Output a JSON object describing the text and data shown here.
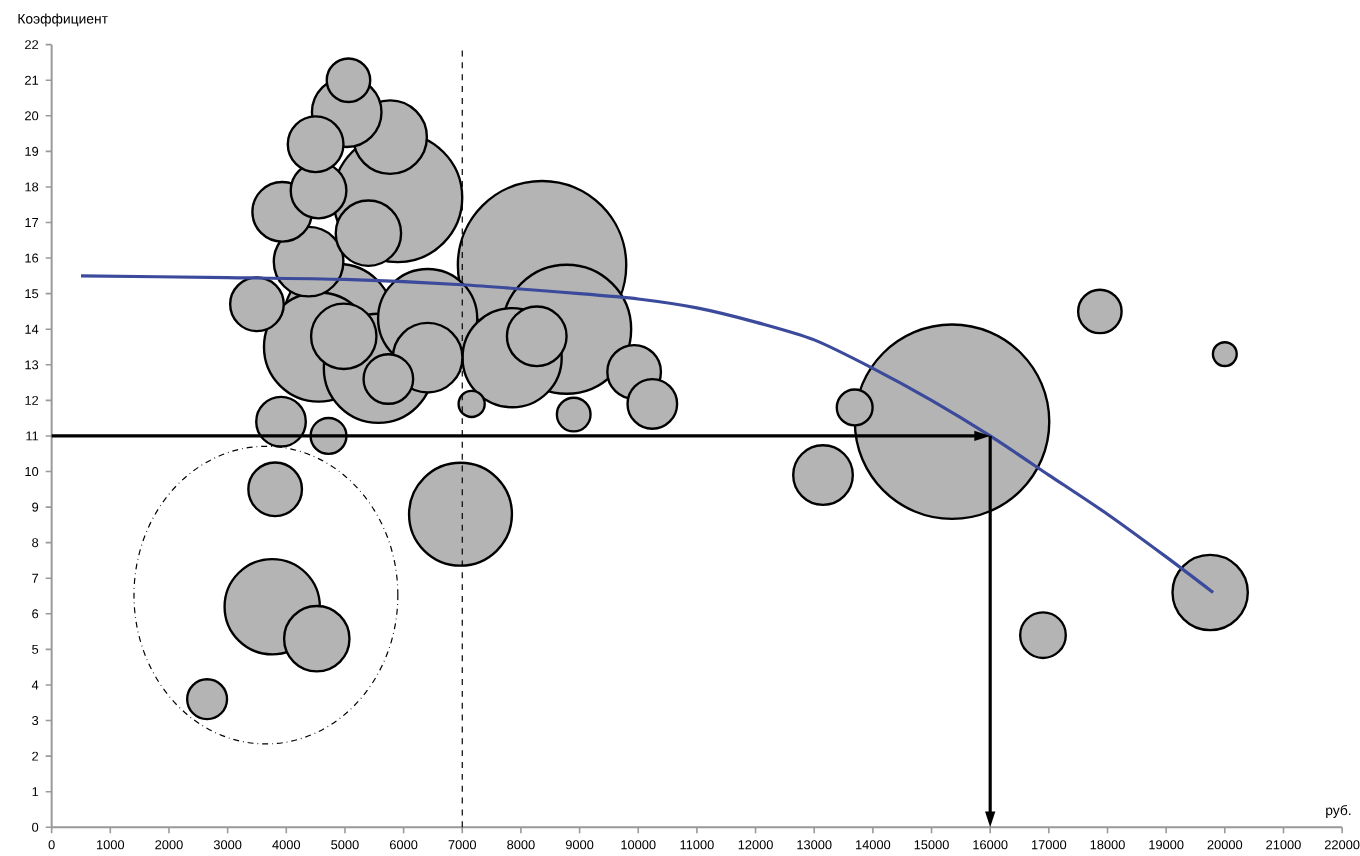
{
  "chart_data": {
    "type": "bubble",
    "xlabel": "руб.",
    "ylabel": "Коэффициент",
    "xlim": [
      0,
      22000
    ],
    "xticks": [
      0,
      1000,
      2000,
      3000,
      4000,
      5000,
      6000,
      7000,
      8000,
      9000,
      10000,
      11000,
      12000,
      13000,
      14000,
      15000,
      16000,
      17000,
      18000,
      19000,
      20000,
      21000,
      22000
    ],
    "ylim": [
      0,
      22
    ],
    "yticks": [
      0,
      1,
      2,
      3,
      4,
      5,
      6,
      7,
      8,
      9,
      10,
      11,
      12,
      13,
      14,
      15,
      16,
      17,
      18,
      19,
      20,
      21,
      22
    ],
    "grid": false,
    "ref_lines": [
      {
        "axis": "x",
        "value": 7000,
        "line_style": "dashed",
        "color": "#000000"
      },
      {
        "axis": "y",
        "value": 11,
        "line_style": "solid",
        "color": "#000000"
      },
      {
        "axis": "x",
        "value": 16000,
        "line_style": "solid",
        "color": "#000000"
      }
    ],
    "series": [
      {
        "color": "#b4b4b4",
        "x": [
          15350,
          8360,
          8780,
          5900,
          4890,
          4550,
          5570,
          6970,
          6410,
          7850,
          3760,
          19750,
          5770,
          5030,
          4380,
          6410,
          4520,
          5400,
          4980,
          3930,
          8270,
          13150,
          4550,
          4500,
          3810,
          3500,
          9930,
          3910,
          5740,
          10240,
          16900,
          5060,
          17870,
          2650,
          4720,
          13690,
          8900,
          7160,
          20000
        ],
        "values": [
          11.4,
          15.8,
          14.0,
          17.7,
          14.3,
          13.5,
          12.9,
          8.8,
          14.3,
          13.2,
          6.2,
          6.6,
          19.4,
          20.1,
          15.9,
          13.2,
          5.3,
          16.7,
          13.8,
          17.3,
          13.8,
          9.9,
          17.9,
          19.2,
          9.5,
          14.7,
          12.8,
          11.4,
          12.6,
          11.9,
          5.4,
          21.0,
          14.5,
          3.6,
          11.0,
          11.8,
          11.6,
          11.9,
          13.3
        ],
        "sizes": [
          1,
          0.75,
          0.44,
          0.44,
          0.315,
          0.315,
          0.315,
          0.28,
          0.26,
          0.26,
          0.24,
          0.15,
          0.143,
          0.128,
          0.128,
          0.128,
          0.113,
          0.113,
          0.113,
          0.094,
          0.094,
          0.094,
          0.082,
          0.082,
          0.076,
          0.076,
          0.076,
          0.065,
          0.065,
          0.065,
          0.055,
          0.05,
          0.05,
          0.042,
          0.034,
          0.034,
          0.03,
          0.018,
          0.015
        ]
      },
      {
        "type": "line",
        "color": "#3c4a9c",
        "x": [
          500,
          3000,
          5000,
          7000,
          9000,
          10000,
          11000,
          12000,
          13000,
          14000,
          15000,
          16000,
          17000,
          18000,
          19000,
          19800
        ],
        "values": [
          15.5,
          15.45,
          15.4,
          15.25,
          15.0,
          14.85,
          14.6,
          14.2,
          13.7,
          12.9,
          12.0,
          11.0,
          9.9,
          8.8,
          7.6,
          6.6
        ]
      }
    ]
  }
}
